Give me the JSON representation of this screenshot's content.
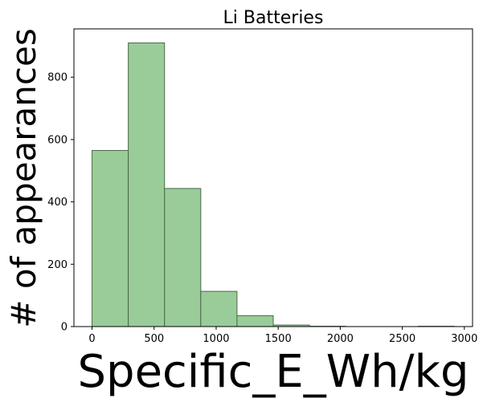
{
  "chart_data": {
    "type": "bar",
    "title": "Li Batteries",
    "xlabel": "Specific_E_Wh/kg",
    "ylabel": "# of appearances",
    "bin_edges": [
      0,
      292,
      584,
      876,
      1168,
      1460,
      1752,
      2044,
      2336,
      2628,
      2920
    ],
    "values": [
      565,
      910,
      443,
      113,
      35,
      5,
      1,
      0,
      0,
      1
    ],
    "xlim": [
      -146,
      3066
    ],
    "ylim": [
      0,
      955
    ],
    "xticks": [
      0,
      500,
      1000,
      1500,
      2000,
      2500,
      3000
    ],
    "yticks": [
      0,
      200,
      400,
      600,
      800
    ],
    "grid": false,
    "bar_color": "#99cc99",
    "edge_color": "#4a6a4a"
  }
}
